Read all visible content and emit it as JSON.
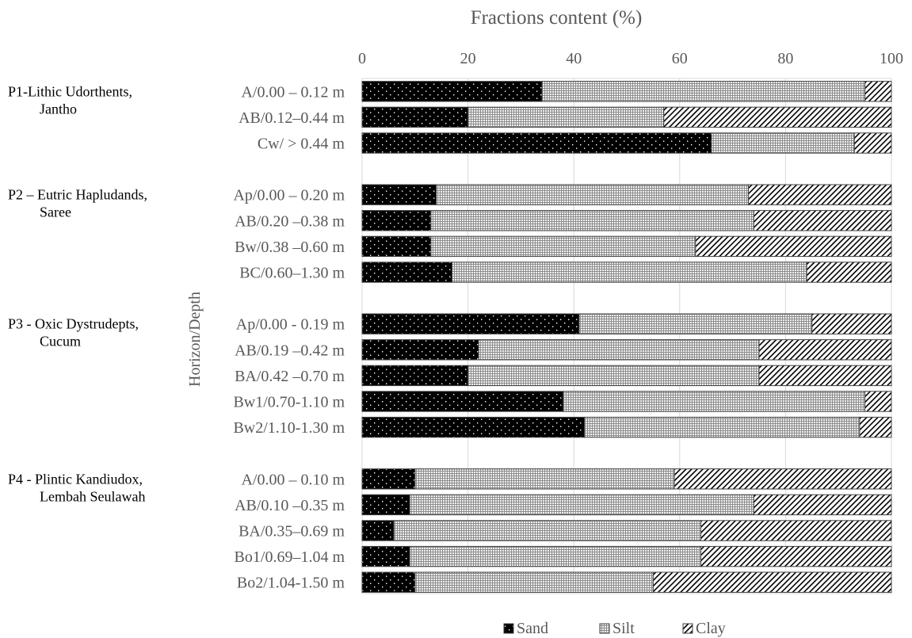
{
  "chart_data": {
    "type": "bar",
    "orientation": "horizontal",
    "stacked": true,
    "title": "Fractions content (%)",
    "xlabel": "Fractions content (%)",
    "ylabel": "Horizon/Depth",
    "xlim": [
      0,
      100
    ],
    "xticks": [
      "0",
      "20",
      "40",
      "60",
      "80",
      "100"
    ],
    "grid": "vertical",
    "legend_position": "bottom",
    "groups": [
      {
        "label_line1": "P1-Lithic Udorthents,",
        "label_line2": "Jantho",
        "categories": [
          "A/0.00 – 0.12 m",
          "AB/0.12–0.44 m",
          "Cw/ > 0.44 m"
        ]
      },
      {
        "label_line1": "P2 – Eutric Hapludands,",
        "label_line2": "Saree",
        "categories": [
          "Ap/0.00 – 0.20 m",
          "AB/0.20 –0.38 m",
          "Bw/0.38 –0.60 m",
          "BC/0.60–1.30 m"
        ]
      },
      {
        "label_line1": "P3 - Oxic Dystrudepts,",
        "label_line2": "Cucum",
        "categories": [
          "Ap/0.00 - 0.19 m",
          "AB/0.19 –0.42 m",
          "BA/0.42 –0.70 m",
          "Bw1/0.70-1.10 m",
          "Bw2/1.10-1.30 m"
        ]
      },
      {
        "label_line1": "P4 - Plintic Kandiudox,",
        "label_line2": "Lembah Seulawah",
        "categories": [
          "A/0.00 – 0.10 m",
          "AB/0.10 –0.35 m",
          "BA/0.35–0.69 m",
          "Bo1/0.69–1.04 m",
          "Bo2/1.04-1.50 m"
        ]
      }
    ],
    "series": [
      {
        "name": "Sand",
        "color": "#000000",
        "pattern": "dots-on-black",
        "values": [
          34,
          20,
          66,
          14,
          13,
          13,
          17,
          41,
          22,
          20,
          38,
          42,
          10,
          9,
          6,
          9,
          10
        ]
      },
      {
        "name": "Silt",
        "color": "#bfbfbf",
        "pattern": "fine-grid",
        "values": [
          61,
          37,
          27,
          59,
          61,
          50,
          67,
          44,
          53,
          55,
          57,
          52,
          49,
          65,
          58,
          55,
          45
        ]
      },
      {
        "name": "Clay",
        "color": "#ffffff",
        "pattern": "diagonal-hatch",
        "values": [
          5,
          43,
          7,
          27,
          26,
          37,
          16,
          15,
          25,
          25,
          5,
          6,
          41,
          26,
          36,
          36,
          45
        ]
      }
    ]
  }
}
